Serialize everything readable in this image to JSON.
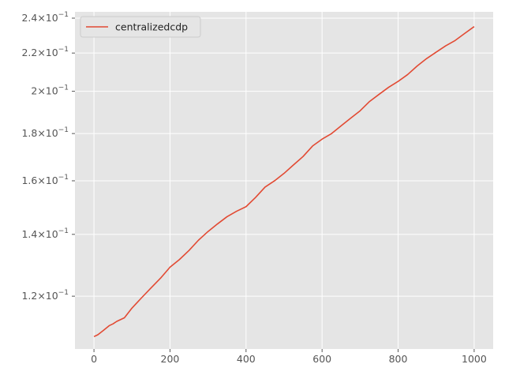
{
  "chart_data": {
    "type": "line",
    "title": "",
    "xlabel": "",
    "ylabel": "",
    "xlim": [
      -50,
      1050
    ],
    "ylim": [
      0.1052,
      0.2438
    ],
    "yscale": "log",
    "grid": true,
    "legend": "top-left",
    "background": "#E5E5E5",
    "grid_color": "#FFFFFF",
    "x_ticks": [
      {
        "value": 0,
        "label": "0"
      },
      {
        "value": 200,
        "label": "200"
      },
      {
        "value": 400,
        "label": "400"
      },
      {
        "value": 600,
        "label": "600"
      },
      {
        "value": 800,
        "label": "800"
      },
      {
        "value": 1000,
        "label": "1000"
      }
    ],
    "y_ticks": [
      {
        "value": 0.12,
        "mantissa": "1.2×10",
        "exponent": "−1"
      },
      {
        "value": 0.14,
        "mantissa": "1.4×10",
        "exponent": "−1"
      },
      {
        "value": 0.16,
        "mantissa": "1.6×10",
        "exponent": "−1"
      },
      {
        "value": 0.18,
        "mantissa": "1.8×10",
        "exponent": "−1"
      },
      {
        "value": 0.2,
        "mantissa": "2×10",
        "exponent": "−1"
      },
      {
        "value": 0.22,
        "mantissa": "2.2×10",
        "exponent": "−1"
      },
      {
        "value": 0.24,
        "mantissa": "2.4×10",
        "exponent": "−1"
      }
    ],
    "series": [
      {
        "name": "centralizedcdp",
        "color": "#E24A33",
        "x": [
          0,
          10,
          25,
          40,
          50,
          60,
          70,
          80,
          100,
          125,
          150,
          175,
          200,
          225,
          250,
          275,
          300,
          325,
          350,
          375,
          400,
          425,
          450,
          475,
          500,
          525,
          550,
          575,
          600,
          625,
          650,
          675,
          700,
          725,
          750,
          775,
          800,
          825,
          850,
          875,
          900,
          925,
          950,
          975,
          1000
        ],
        "values": [
          0.1085,
          0.109,
          0.1102,
          0.1115,
          0.112,
          0.1127,
          0.1132,
          0.1137,
          0.1165,
          0.1195,
          0.1225,
          0.1255,
          0.129,
          0.1315,
          0.1345,
          0.138,
          0.141,
          0.1437,
          0.1463,
          0.1483,
          0.15,
          0.1535,
          0.1575,
          0.16,
          0.163,
          0.1665,
          0.17,
          0.1745,
          0.1775,
          0.18,
          0.1835,
          0.187,
          0.1905,
          0.195,
          0.1985,
          0.202,
          0.205,
          0.2085,
          0.213,
          0.217,
          0.2205,
          0.224,
          0.227,
          0.231,
          0.235
        ]
      }
    ]
  }
}
